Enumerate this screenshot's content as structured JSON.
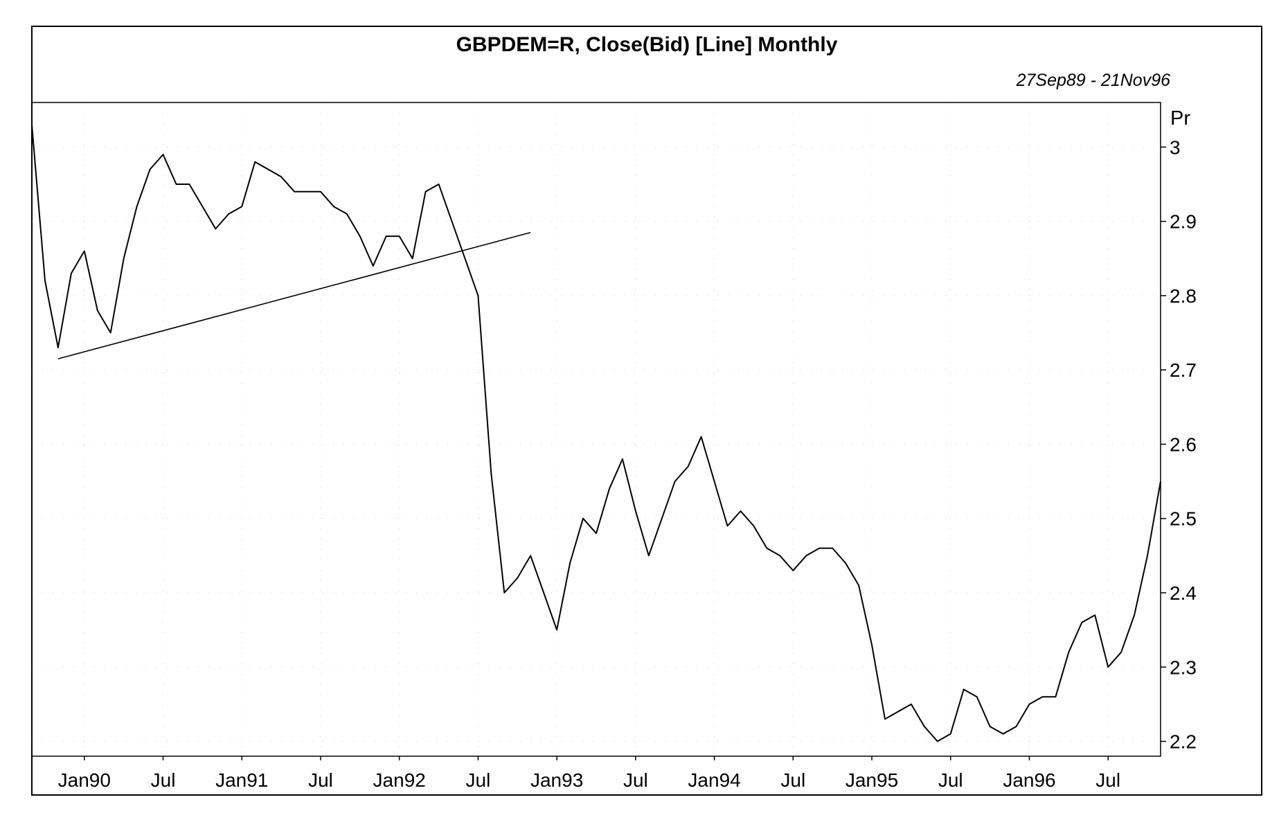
{
  "chart_data": {
    "type": "line",
    "title": "GBPDEM=R, Close(Bid) [Line] Monthly",
    "date_range": "27Sep89 - 21Nov96",
    "ylabel": "Pr",
    "ylim": [
      2.18,
      3.06
    ],
    "yticks": [
      2.2,
      2.3,
      2.4,
      2.5,
      2.6,
      2.7,
      2.8,
      2.9,
      3
    ],
    "ytick_labels": [
      "2.2",
      "2.3",
      "2.4",
      "2.5",
      "2.6",
      "2.7",
      "2.8",
      "2.9",
      "3"
    ],
    "grid": true,
    "xticks": [
      {
        "label": "Jan90",
        "date": "1990-01"
      },
      {
        "label": "Jul",
        "date": "1990-07"
      },
      {
        "label": "Jan91",
        "date": "1991-01"
      },
      {
        "label": "Jul",
        "date": "1991-07"
      },
      {
        "label": "Jan92",
        "date": "1992-01"
      },
      {
        "label": "Jul",
        "date": "1992-07"
      },
      {
        "label": "Jan93",
        "date": "1993-01"
      },
      {
        "label": "Jul",
        "date": "1993-07"
      },
      {
        "label": "Jan94",
        "date": "1994-01"
      },
      {
        "label": "Jul",
        "date": "1994-07"
      },
      {
        "label": "Jan95",
        "date": "1995-01"
      },
      {
        "label": "Jul",
        "date": "1995-07"
      },
      {
        "label": "Jan96",
        "date": "1996-01"
      },
      {
        "label": "Jul",
        "date": "1996-07"
      }
    ],
    "x": [
      "1989-09",
      "1989-10",
      "1989-11",
      "1989-12",
      "1990-01",
      "1990-02",
      "1990-03",
      "1990-04",
      "1990-05",
      "1990-06",
      "1990-07",
      "1990-08",
      "1990-09",
      "1990-10",
      "1990-11",
      "1990-12",
      "1991-01",
      "1991-02",
      "1991-03",
      "1991-04",
      "1991-05",
      "1991-06",
      "1991-07",
      "1991-08",
      "1991-09",
      "1991-10",
      "1991-11",
      "1991-12",
      "1992-01",
      "1992-02",
      "1992-03",
      "1992-04",
      "1992-05",
      "1992-06",
      "1992-07",
      "1992-08",
      "1992-09",
      "1992-10",
      "1992-11",
      "1992-12",
      "1993-01",
      "1993-02",
      "1993-03",
      "1993-04",
      "1993-05",
      "1993-06",
      "1993-07",
      "1993-08",
      "1993-09",
      "1993-10",
      "1993-11",
      "1993-12",
      "1994-01",
      "1994-02",
      "1994-03",
      "1994-04",
      "1994-05",
      "1994-06",
      "1994-07",
      "1994-08",
      "1994-09",
      "1994-10",
      "1994-11",
      "1994-12",
      "1995-01",
      "1995-02",
      "1995-03",
      "1995-04",
      "1995-05",
      "1995-06",
      "1995-07",
      "1995-08",
      "1995-09",
      "1995-10",
      "1995-11",
      "1995-12",
      "1996-01",
      "1996-02",
      "1996-03",
      "1996-04",
      "1996-05",
      "1996-06",
      "1996-07",
      "1996-08",
      "1996-09",
      "1996-10",
      "1996-11"
    ],
    "series": [
      {
        "values": [
          3.03,
          2.82,
          2.73,
          2.83,
          2.86,
          2.78,
          2.75,
          2.85,
          2.92,
          2.97,
          2.99,
          2.95,
          2.95,
          2.92,
          2.89,
          2.91,
          2.92,
          2.98,
          2.97,
          2.96,
          2.94,
          2.94,
          2.94,
          2.92,
          2.91,
          2.88,
          2.84,
          2.88,
          2.88,
          2.85,
          2.94,
          2.95,
          2.9,
          2.85,
          2.8,
          2.56,
          2.4,
          2.42,
          2.45,
          2.4,
          2.35,
          2.44,
          2.5,
          2.48,
          2.54,
          2.58,
          2.51,
          2.45,
          2.5,
          2.55,
          2.57,
          2.61,
          2.55,
          2.49,
          2.51,
          2.49,
          2.46,
          2.45,
          2.43,
          2.45,
          2.46,
          2.46,
          2.44,
          2.41,
          2.33,
          2.23,
          2.24,
          2.25,
          2.22,
          2.2,
          2.21,
          2.27,
          2.26,
          2.22,
          2.21,
          2.22,
          2.25,
          2.26,
          2.26,
          2.32,
          2.36,
          2.37,
          2.3,
          2.32,
          2.37,
          2.45,
          2.55
        ]
      }
    ],
    "annotations": [
      {
        "type": "trendline",
        "from": {
          "x": "1989-11",
          "y": 2.715
        },
        "to": {
          "x": "1992-11",
          "y": 2.885
        }
      }
    ]
  }
}
